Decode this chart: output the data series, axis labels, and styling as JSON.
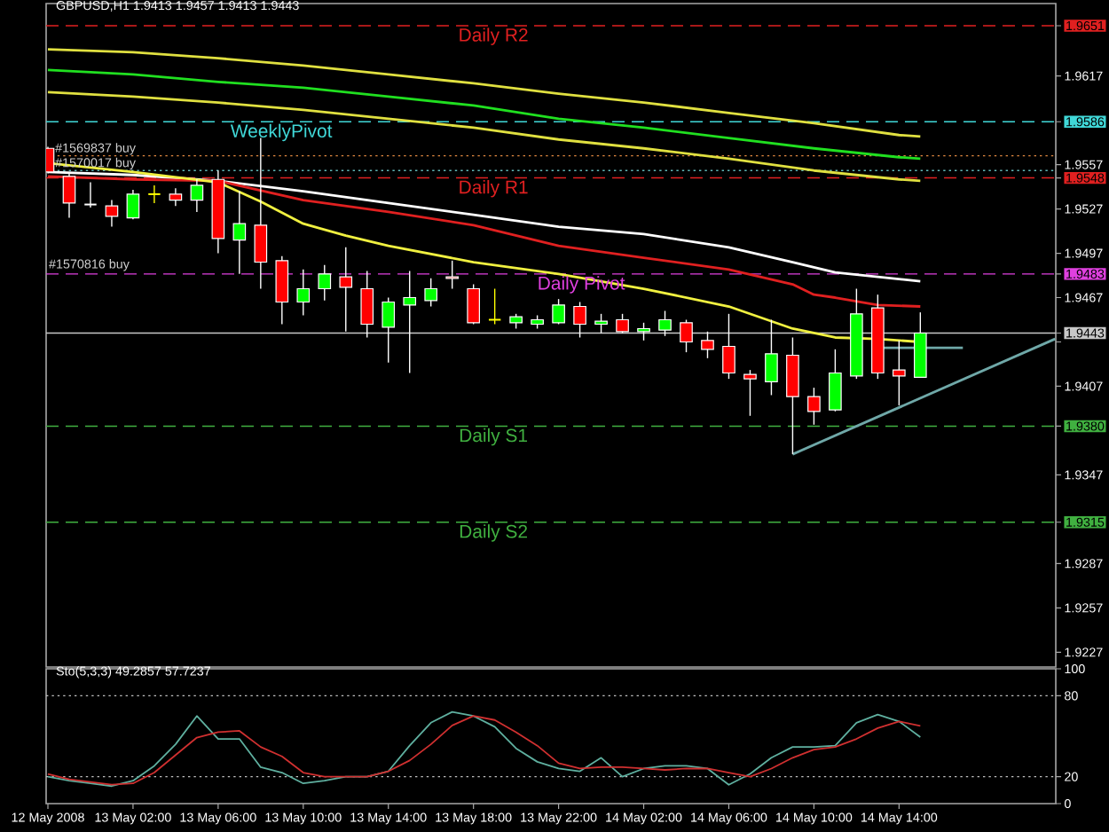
{
  "chart_data": [
    {
      "type": "candlestick",
      "title": "GBPUSD,H1 1.9413 1.9457 1.9413 1.9443",
      "x": [
        "2008-05-12T22:00",
        "2008-05-12T23:00",
        "2008-05-13T00:00",
        "2008-05-13T01:00",
        "2008-05-13T02:00",
        "2008-05-13T03:00",
        "2008-05-13T04:00",
        "2008-05-13T05:00",
        "2008-05-13T06:00",
        "2008-05-13T07:00",
        "2008-05-13T08:00",
        "2008-05-13T09:00",
        "2008-05-13T10:00",
        "2008-05-13T11:00",
        "2008-05-13T12:00",
        "2008-05-13T13:00",
        "2008-05-13T14:00",
        "2008-05-13T15:00",
        "2008-05-13T16:00",
        "2008-05-13T17:00",
        "2008-05-13T18:00",
        "2008-05-13T19:00",
        "2008-05-13T20:00",
        "2008-05-13T21:00",
        "2008-05-13T22:00",
        "2008-05-13T23:00",
        "2008-05-14T00:00",
        "2008-05-14T01:00",
        "2008-05-14T02:00",
        "2008-05-14T03:00",
        "2008-05-14T04:00",
        "2008-05-14T05:00",
        "2008-05-14T06:00",
        "2008-05-14T07:00",
        "2008-05-14T08:00",
        "2008-05-14T09:00",
        "2008-05-14T10:00",
        "2008-05-14T11:00",
        "2008-05-14T12:00",
        "2008-05-14T13:00",
        "2008-05-14T14:00",
        "2008-05-14T15:00"
      ],
      "ohlc": [
        [
          1.9568,
          1.9569,
          1.9551,
          1.9552
        ],
        [
          1.9549,
          1.9551,
          1.9521,
          1.9531
        ],
        [
          1.953,
          1.9545,
          1.9528,
          1.953
        ],
        [
          1.9529,
          1.9533,
          1.9515,
          1.9522
        ],
        [
          1.9521,
          1.954,
          1.952,
          1.9537
        ],
        [
          1.9537,
          1.9543,
          1.9531,
          1.9537
        ],
        [
          1.9537,
          1.9541,
          1.9529,
          1.9533
        ],
        [
          1.9533,
          1.9547,
          1.9525,
          1.9543
        ],
        [
          1.9547,
          1.9553,
          1.9497,
          1.9507
        ],
        [
          1.9506,
          1.9539,
          1.9483,
          1.9517
        ],
        [
          1.9516,
          1.9575,
          1.9473,
          1.9491
        ],
        [
          1.9492,
          1.9495,
          1.9449,
          1.9464
        ],
        [
          1.9464,
          1.9486,
          1.9455,
          1.9473
        ],
        [
          1.9473,
          1.9489,
          1.9465,
          1.9483
        ],
        [
          1.9481,
          1.9501,
          1.9444,
          1.9474
        ],
        [
          1.9473,
          1.9485,
          1.944,
          1.9449
        ],
        [
          1.9447,
          1.9467,
          1.9423,
          1.9464
        ],
        [
          1.9462,
          1.9485,
          1.9416,
          1.9467
        ],
        [
          1.9465,
          1.948,
          1.9461,
          1.9473
        ],
        [
          1.9481,
          1.9492,
          1.9473,
          1.948
        ],
        [
          1.9473,
          1.9476,
          1.9449,
          1.945
        ],
        [
          1.9452,
          1.9473,
          1.9449,
          1.9452
        ],
        [
          1.945,
          1.9456,
          1.9446,
          1.9454
        ],
        [
          1.9449,
          1.9455,
          1.9446,
          1.9452
        ],
        [
          1.945,
          1.9466,
          1.9449,
          1.9462
        ],
        [
          1.9461,
          1.9464,
          1.944,
          1.9449
        ],
        [
          1.9449,
          1.9456,
          1.9443,
          1.9451
        ],
        [
          1.9452,
          1.9456,
          1.9443,
          1.9444
        ],
        [
          1.9444,
          1.945,
          1.9438,
          1.9446
        ],
        [
          1.9445,
          1.9458,
          1.9441,
          1.9452
        ],
        [
          1.945,
          1.9452,
          1.943,
          1.9437
        ],
        [
          1.9438,
          1.9444,
          1.9426,
          1.9432
        ],
        [
          1.9434,
          1.9456,
          1.9412,
          1.9416
        ],
        [
          1.9415,
          1.9418,
          1.9387,
          1.9412
        ],
        [
          1.941,
          1.9452,
          1.9401,
          1.9429
        ],
        [
          1.9428,
          1.944,
          1.9361,
          1.94
        ],
        [
          1.94,
          1.9406,
          1.9381,
          1.939
        ],
        [
          1.9391,
          1.9432,
          1.939,
          1.9416
        ],
        [
          1.9414,
          1.9473,
          1.9412,
          1.9456
        ],
        [
          1.946,
          1.9469,
          1.9412,
          1.9416
        ],
        [
          1.9418,
          1.9438,
          1.9394,
          1.9414
        ],
        [
          1.9413,
          1.9457,
          1.9413,
          1.9443
        ]
      ],
      "colors": [
        "#ff0000",
        "#ff0000",
        "#ffffff",
        "#ff0000",
        "#00ff00",
        "#ffff00",
        "#ff0000",
        "#00ff00",
        "#ff0000",
        "#00ff00",
        "#ff0000",
        "#ff0000",
        "#00ff00",
        "#00ff00",
        "#ff0000",
        "#ff0000",
        "#00ff00",
        "#00ff00",
        "#00ff00",
        "#ff0000",
        "#ff0000",
        "#ffff00",
        "#00ff00",
        "#00ff00",
        "#00ff00",
        "#ff0000",
        "#00ff00",
        "#ff0000",
        "#00ff00",
        "#00ff00",
        "#ff0000",
        "#ff0000",
        "#ff0000",
        "#ff0000",
        "#00ff00",
        "#ff0000",
        "#ff0000",
        "#00ff00",
        "#00ff00",
        "#ff0000",
        "#ff0000",
        "#00ff00"
      ],
      "series": [
        {
          "type": "line",
          "color": "#e0e040",
          "x": [
            "2008-05-12T22:00",
            "2008-05-13T02:00",
            "2008-05-13T06:00",
            "2008-05-13T10:00",
            "2008-05-13T14:00",
            "2008-05-13T18:00",
            "2008-05-13T22:00",
            "2008-05-14T02:00",
            "2008-05-14T06:00",
            "2008-05-14T10:00",
            "2008-05-14T14:00",
            "2008-05-14T15:00"
          ],
          "values": [
            1.9635,
            1.9633,
            1.9629,
            1.9624,
            1.9618,
            1.9612,
            1.9605,
            1.9599,
            1.9592,
            1.9585,
            1.9577,
            1.9576
          ]
        },
        {
          "type": "line",
          "color": "#20e020",
          "x": [
            "2008-05-12T22:00",
            "2008-05-13T02:00",
            "2008-05-13T06:00",
            "2008-05-13T10:00",
            "2008-05-13T14:00",
            "2008-05-13T18:00",
            "2008-05-13T22:00",
            "2008-05-14T02:00",
            "2008-05-14T06:00",
            "2008-05-14T10:00",
            "2008-05-14T14:00",
            "2008-05-14T15:00"
          ],
          "values": [
            1.9621,
            1.9618,
            1.9613,
            1.9609,
            1.9603,
            1.9597,
            1.9588,
            1.9582,
            1.9575,
            1.9568,
            1.9562,
            1.9561
          ]
        },
        {
          "type": "line",
          "color": "#e0e040",
          "x": [
            "2008-05-12T22:00",
            "2008-05-13T02:00",
            "2008-05-13T06:00",
            "2008-05-13T10:00",
            "2008-05-13T14:00",
            "2008-05-13T18:00",
            "2008-05-13T22:00",
            "2008-05-14T02:00",
            "2008-05-14T06:00",
            "2008-05-14T10:00",
            "2008-05-14T14:00",
            "2008-05-14T15:00"
          ],
          "values": [
            1.9606,
            1.9603,
            1.9599,
            1.9594,
            1.9588,
            1.9582,
            1.9574,
            1.9568,
            1.9561,
            1.9553,
            1.9547,
            1.9546
          ]
        },
        {
          "type": "line",
          "color": "#ffffff",
          "x": [
            "2008-05-12T22:00",
            "2008-05-13T02:00",
            "2008-05-13T06:00",
            "2008-05-13T10:00",
            "2008-05-13T14:00",
            "2008-05-13T18:00",
            "2008-05-13T22:00",
            "2008-05-14T02:00",
            "2008-05-14T06:00",
            "2008-05-14T09:00",
            "2008-05-14T11:00",
            "2008-05-14T13:00",
            "2008-05-14T15:00"
          ],
          "values": [
            1.9552,
            1.955,
            1.9546,
            1.9539,
            1.9531,
            1.9523,
            1.9515,
            1.951,
            1.9501,
            1.9491,
            1.9484,
            1.9481,
            1.9478
          ]
        },
        {
          "type": "line",
          "color": "#e02020",
          "x": [
            "2008-05-12T22:00",
            "2008-05-13T02:00",
            "2008-05-13T06:00",
            "2008-05-13T10:00",
            "2008-05-13T14:00",
            "2008-05-13T18:00",
            "2008-05-13T22:00",
            "2008-05-14T02:00",
            "2008-05-14T06:00",
            "2008-05-14T09:00",
            "2008-05-14T10:00",
            "2008-05-14T11:00",
            "2008-05-14T13:00",
            "2008-05-14T15:00"
          ],
          "values": [
            1.9549,
            1.9547,
            1.9546,
            1.9533,
            1.9525,
            1.9516,
            1.9502,
            1.9494,
            1.9486,
            1.9476,
            1.9469,
            1.9467,
            1.9462,
            1.9461
          ]
        },
        {
          "type": "line",
          "color": "#f0f040",
          "x": [
            "2008-05-12T22:00",
            "2008-05-13T02:00",
            "2008-05-13T06:00",
            "2008-05-13T08:00",
            "2008-05-13T10:00",
            "2008-05-13T12:00",
            "2008-05-13T14:00",
            "2008-05-13T18:00",
            "2008-05-13T22:00",
            "2008-05-14T02:00",
            "2008-05-14T06:00",
            "2008-05-14T09:00",
            "2008-05-14T11:00",
            "2008-05-14T13:00",
            "2008-05-14T15:00"
          ],
          "values": [
            1.9558,
            1.9552,
            1.9545,
            1.9532,
            1.9517,
            1.9509,
            1.9502,
            1.9491,
            1.9483,
            1.9473,
            1.9461,
            1.9446,
            1.944,
            1.9439,
            1.9437
          ]
        },
        {
          "type": "line",
          "color": "#6fa8a8",
          "x": [
            "2008-05-14T09:00",
            "2008-05-14T21:20"
          ],
          "values": [
            1.9361,
            1.9439
          ]
        },
        {
          "type": "line",
          "color": "#6fa8a8",
          "x": [
            "2008-05-14T13:00",
            "2008-05-14T17:00"
          ],
          "values": [
            1.9433,
            1.9433
          ]
        }
      ],
      "xlim": [
        "2008-05-12T21:55",
        "2008-05-14T21:22"
      ],
      "ylim": [
        1.9217,
        1.9666
      ],
      "yticks": [
        1.9227,
        1.9257,
        1.9287,
        1.9315,
        1.9347,
        {
          "value": 1.938,
          "label": "1.9380"
        },
        1.9407,
        {
          "value": 1.9437,
          "label": null
        },
        1.9443,
        1.9467,
        1.9483,
        1.9497,
        1.9527,
        1.9548,
        1.9557,
        1.9586,
        1.9617,
        1.9651
      ],
      "ref_lines": [
        {
          "axis": "y",
          "value": 1.9651,
          "label": "Daily R2",
          "color": "#e02020",
          "line_style": "dashed"
        },
        {
          "axis": "y",
          "value": 1.9586,
          "label": "WeeklyPivot",
          "color": "#40d8d8",
          "line_style": "dashed"
        },
        {
          "axis": "y",
          "value": 1.9563,
          "label": "#1569837 buy",
          "color": "#e08840",
          "line_style": "dotted"
        },
        {
          "axis": "y",
          "value": 1.9553,
          "label": "#1570017 buy",
          "color": "#60b8b8",
          "line_style": "dotted"
        },
        {
          "axis": "y",
          "value": 1.9548,
          "label": "Daily R1",
          "color": "#e02020",
          "line_style": "dashed"
        },
        {
          "axis": "y",
          "value": 1.9483,
          "label": "Daily Pivot",
          "color": "#e040e0",
          "line_style": "dashed"
        },
        {
          "axis": "y",
          "value": 1.9443,
          "color": "#c8c8c8",
          "line_style": "solid"
        },
        {
          "axis": "y",
          "value": 1.938,
          "label": "Daily S1",
          "color": "#40b040",
          "line_style": "dashed"
        },
        {
          "axis": "y",
          "value": 1.9315,
          "label": "Daily S2",
          "color": "#40b040",
          "line_style": "dashed"
        }
      ],
      "annotations": [
        {
          "text": "#1570816 buy",
          "x": "2008-05-12T22:00",
          "y": 1.9483
        }
      ],
      "tick_labels": "y"
    },
    {
      "type": "line",
      "title": "Sto(5,3,3) 49.2857 57.7237",
      "x": [
        "2008-05-12T22:00",
        "2008-05-12T23:00",
        "2008-05-13T00:00",
        "2008-05-13T01:00",
        "2008-05-13T02:00",
        "2008-05-13T03:00",
        "2008-05-13T04:00",
        "2008-05-13T05:00",
        "2008-05-13T06:00",
        "2008-05-13T07:00",
        "2008-05-13T08:00",
        "2008-05-13T09:00",
        "2008-05-13T10:00",
        "2008-05-13T11:00",
        "2008-05-13T12:00",
        "2008-05-13T13:00",
        "2008-05-13T14:00",
        "2008-05-13T15:00",
        "2008-05-13T16:00",
        "2008-05-13T17:00",
        "2008-05-13T18:00",
        "2008-05-13T19:00",
        "2008-05-13T20:00",
        "2008-05-13T21:00",
        "2008-05-13T22:00",
        "2008-05-13T23:00",
        "2008-05-14T00:00",
        "2008-05-14T01:00",
        "2008-05-14T02:00",
        "2008-05-14T03:00",
        "2008-05-14T04:00",
        "2008-05-14T05:00",
        "2008-05-14T06:00",
        "2008-05-14T07:00",
        "2008-05-14T08:00",
        "2008-05-14T09:00",
        "2008-05-14T10:00",
        "2008-05-14T11:00",
        "2008-05-14T12:00",
        "2008-05-14T13:00",
        "2008-05-14T14:00",
        "2008-05-14T15:00"
      ],
      "series": [
        {
          "color": "#5fb0a0",
          "values": [
            20,
            17,
            15,
            13,
            17,
            28,
            44,
            65,
            48,
            48,
            27,
            23,
            15,
            17,
            20,
            20,
            24,
            43,
            60,
            68,
            65,
            57,
            41,
            31,
            26,
            24,
            34,
            20,
            26,
            28,
            28,
            26,
            14,
            22,
            34,
            42,
            42,
            43,
            60,
            66,
            61,
            49.2857
          ]
        },
        {
          "color": "#d03030",
          "values": [
            22,
            18,
            16,
            14,
            15,
            23,
            36,
            49,
            53,
            54,
            42,
            35,
            23,
            20,
            20,
            20,
            24,
            32,
            44,
            58,
            65,
            62,
            53,
            43,
            30,
            26,
            27,
            27,
            26,
            25,
            26,
            26,
            23,
            20,
            26,
            34,
            40,
            42,
            48,
            56,
            61,
            57.7237
          ]
        }
      ],
      "xlim": [
        "2008-05-12T21:55",
        "2008-05-14T21:22"
      ],
      "xticks": [
        {
          "value": "2008-05-12T22:00",
          "label": "12 May 2008"
        },
        {
          "value": "2008-05-13T02:00",
          "label": "13 May 02:00"
        },
        {
          "value": "2008-05-13T06:00",
          "label": "13 May 06:00"
        },
        {
          "value": "2008-05-13T10:00",
          "label": "13 May 10:00"
        },
        {
          "value": "2008-05-13T14:00",
          "label": "13 May 14:00"
        },
        {
          "value": "2008-05-13T18:00",
          "label": "13 May 18:00"
        },
        {
          "value": "2008-05-13T22:00",
          "label": "13 May 22:00"
        },
        {
          "value": "2008-05-14T02:00",
          "label": "14 May 02:00"
        },
        {
          "value": "2008-05-14T06:00",
          "label": "14 May 06:00"
        },
        {
          "value": "2008-05-14T10:00",
          "label": "14 May 10:00"
        },
        {
          "value": "2008-05-14T14:00",
          "label": "14 May 14:00"
        }
      ],
      "ylim": [
        0,
        100
      ],
      "yticks": [
        0,
        20,
        80,
        100
      ],
      "ref_lines": [
        {
          "axis": "y",
          "value": 80,
          "line_style": "dotted"
        },
        {
          "axis": "y",
          "value": 20,
          "line_style": "dotted"
        }
      ]
    }
  ]
}
